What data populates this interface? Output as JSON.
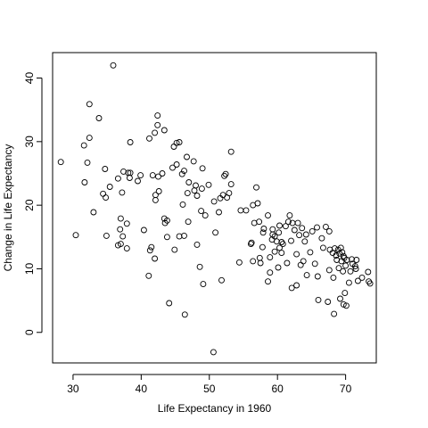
{
  "chart_data": {
    "type": "scatter",
    "xlabel": "Life Expectancy in 1960",
    "ylabel": "Change in Life Expectancy",
    "xlim": [
      27,
      74.5
    ],
    "ylim": [
      -4.8,
      44
    ],
    "xticks": [
      30,
      40,
      50,
      60,
      70
    ],
    "yticks": [
      0,
      10,
      20,
      30,
      40
    ],
    "grid": false,
    "points": [
      [
        28.2,
        26.8
      ],
      [
        30.4,
        15.3
      ],
      [
        31.6,
        29.4
      ],
      [
        31.7,
        23.6
      ],
      [
        32.1,
        26.7
      ],
      [
        32.4,
        35.9
      ],
      [
        32.4,
        30.6
      ],
      [
        33.0,
        18.9
      ],
      [
        33.8,
        33.7
      ],
      [
        34.4,
        21.8
      ],
      [
        34.7,
        25.7
      ],
      [
        34.8,
        21.2
      ],
      [
        34.9,
        15.2
      ],
      [
        35.4,
        22.9
      ],
      [
        35.9,
        42.0
      ],
      [
        36.6,
        24.2
      ],
      [
        36.6,
        13.7
      ],
      [
        36.9,
        16.2
      ],
      [
        37.0,
        17.9
      ],
      [
        37.0,
        13.9
      ],
      [
        37.2,
        22.0
      ],
      [
        37.3,
        15.1
      ],
      [
        37.4,
        25.3
      ],
      [
        37.9,
        17.1
      ],
      [
        37.9,
        13.2
      ],
      [
        38.1,
        25.1
      ],
      [
        38.3,
        24.3
      ],
      [
        38.4,
        25.1
      ],
      [
        38.4,
        29.9
      ],
      [
        39.5,
        23.8
      ],
      [
        39.9,
        24.7
      ],
      [
        40.4,
        16.1
      ],
      [
        41.1,
        8.9
      ],
      [
        41.2,
        30.5
      ],
      [
        41.3,
        12.9
      ],
      [
        41.5,
        13.4
      ],
      [
        41.7,
        24.7
      ],
      [
        42.0,
        31.4
      ],
      [
        42.0,
        11.6
      ],
      [
        42.1,
        20.8
      ],
      [
        42.1,
        21.6
      ],
      [
        42.4,
        34.1
      ],
      [
        42.4,
        32.6
      ],
      [
        42.5,
        24.5
      ],
      [
        42.6,
        22.2
      ],
      [
        43.1,
        25.0
      ],
      [
        43.4,
        31.8
      ],
      [
        43.4,
        17.9
      ],
      [
        43.5,
        17.2
      ],
      [
        43.8,
        17.6
      ],
      [
        43.8,
        15.0
      ],
      [
        44.1,
        4.6
      ],
      [
        44.6,
        25.9
      ],
      [
        44.8,
        29.2
      ],
      [
        44.9,
        13.0
      ],
      [
        45.2,
        29.8
      ],
      [
        45.2,
        26.4
      ],
      [
        45.6,
        29.9
      ],
      [
        45.6,
        15.1
      ],
      [
        46.0,
        24.9
      ],
      [
        46.1,
        20.1
      ],
      [
        46.3,
        25.4
      ],
      [
        46.3,
        15.2
      ],
      [
        46.4,
        2.8
      ],
      [
        46.7,
        27.6
      ],
      [
        46.8,
        21.9
      ],
      [
        46.9,
        17.4
      ],
      [
        47.0,
        23.6
      ],
      [
        47.7,
        26.9
      ],
      [
        47.8,
        22.3
      ],
      [
        48.0,
        23.1
      ],
      [
        48.2,
        13.8
      ],
      [
        48.2,
        21.5
      ],
      [
        48.6,
        10.3
      ],
      [
        48.8,
        19.1
      ],
      [
        48.9,
        22.6
      ],
      [
        49.0,
        25.8
      ],
      [
        49.1,
        7.6
      ],
      [
        49.4,
        18.4
      ],
      [
        49.9,
        23.2
      ],
      [
        50.6,
        -3.1
      ],
      [
        50.7,
        20.6
      ],
      [
        50.9,
        15.7
      ],
      [
        51.4,
        18.9
      ],
      [
        51.6,
        21.1
      ],
      [
        51.8,
        8.2
      ],
      [
        52.0,
        21.6
      ],
      [
        52.2,
        24.6
      ],
      [
        52.4,
        24.9
      ],
      [
        52.6,
        21.2
      ],
      [
        52.9,
        21.9
      ],
      [
        53.2,
        23.3
      ],
      [
        53.2,
        28.4
      ],
      [
        54.4,
        11.0
      ],
      [
        54.6,
        19.2
      ],
      [
        55.4,
        19.2
      ],
      [
        56.1,
        13.9
      ],
      [
        56.2,
        14.1
      ],
      [
        56.4,
        11.2
      ],
      [
        56.4,
        20.0
      ],
      [
        56.6,
        17.2
      ],
      [
        56.9,
        22.8
      ],
      [
        57.1,
        20.3
      ],
      [
        57.3,
        17.4
      ],
      [
        57.4,
        11.7
      ],
      [
        57.5,
        10.9
      ],
      [
        57.8,
        13.4
      ],
      [
        57.9,
        15.7
      ],
      [
        58.0,
        16.3
      ],
      [
        58.6,
        18.4
      ],
      [
        58.6,
        8.0
      ],
      [
        58.9,
        9.4
      ],
      [
        58.9,
        11.8
      ],
      [
        59.2,
        14.6
      ],
      [
        59.3,
        15.4
      ],
      [
        59.3,
        16.2
      ],
      [
        59.6,
        15.1
      ],
      [
        59.6,
        12.7
      ],
      [
        59.9,
        14.3
      ],
      [
        60.1,
        10.2
      ],
      [
        60.2,
        15.7
      ],
      [
        60.3,
        13.3
      ],
      [
        60.3,
        16.8
      ],
      [
        60.6,
        14.2
      ],
      [
        60.6,
        12.5
      ],
      [
        60.8,
        13.9
      ],
      [
        61.2,
        16.7
      ],
      [
        61.4,
        10.9
      ],
      [
        61.6,
        17.4
      ],
      [
        61.8,
        18.4
      ],
      [
        62.0,
        14.4
      ],
      [
        62.1,
        7.0
      ],
      [
        62.2,
        17.2
      ],
      [
        62.5,
        16.1
      ],
      [
        62.8,
        12.3
      ],
      [
        62.8,
        7.4
      ],
      [
        63.0,
        17.2
      ],
      [
        63.2,
        15.3
      ],
      [
        63.4,
        10.6
      ],
      [
        63.6,
        16.4
      ],
      [
        63.8,
        11.2
      ],
      [
        64.0,
        14.3
      ],
      [
        64.2,
        15.4
      ],
      [
        64.3,
        9.0
      ],
      [
        64.8,
        12.6
      ],
      [
        65.1,
        15.9
      ],
      [
        65.5,
        10.8
      ],
      [
        65.8,
        16.5
      ],
      [
        65.9,
        8.8
      ],
      [
        66.0,
        5.1
      ],
      [
        66.5,
        14.8
      ],
      [
        66.7,
        13.3
      ],
      [
        67.1,
        16.6
      ],
      [
        67.4,
        4.8
      ],
      [
        67.6,
        9.8
      ],
      [
        67.6,
        15.9
      ],
      [
        67.7,
        13.0
      ],
      [
        68.1,
        12.5
      ],
      [
        68.2,
        8.6
      ],
      [
        68.3,
        2.9
      ],
      [
        68.4,
        13.2
      ],
      [
        68.6,
        12.1
      ],
      [
        68.7,
        11.4
      ],
      [
        68.9,
        13.0
      ],
      [
        69.0,
        10.1
      ],
      [
        69.1,
        12.4
      ],
      [
        69.2,
        5.3
      ],
      [
        69.3,
        13.3
      ],
      [
        69.4,
        11.2
      ],
      [
        69.6,
        9.6
      ],
      [
        69.7,
        4.4
      ],
      [
        69.7,
        12.0
      ],
      [
        69.8,
        11.7
      ],
      [
        69.9,
        6.2
      ],
      [
        70.0,
        10.5
      ],
      [
        70.1,
        4.2
      ],
      [
        70.2,
        11.4
      ],
      [
        70.5,
        7.8
      ],
      [
        70.7,
        9.6
      ],
      [
        70.9,
        11.5
      ],
      [
        71.0,
        10.8
      ],
      [
        71.4,
        10.4
      ],
      [
        71.6,
        11.4
      ],
      [
        71.8,
        8.1
      ],
      [
        72.4,
        8.6
      ],
      [
        73.3,
        9.5
      ],
      [
        73.4,
        8.0
      ],
      [
        73.6,
        7.7
      ],
      [
        71.5,
        10.0
      ],
      [
        69.5,
        12.6
      ]
    ]
  }
}
